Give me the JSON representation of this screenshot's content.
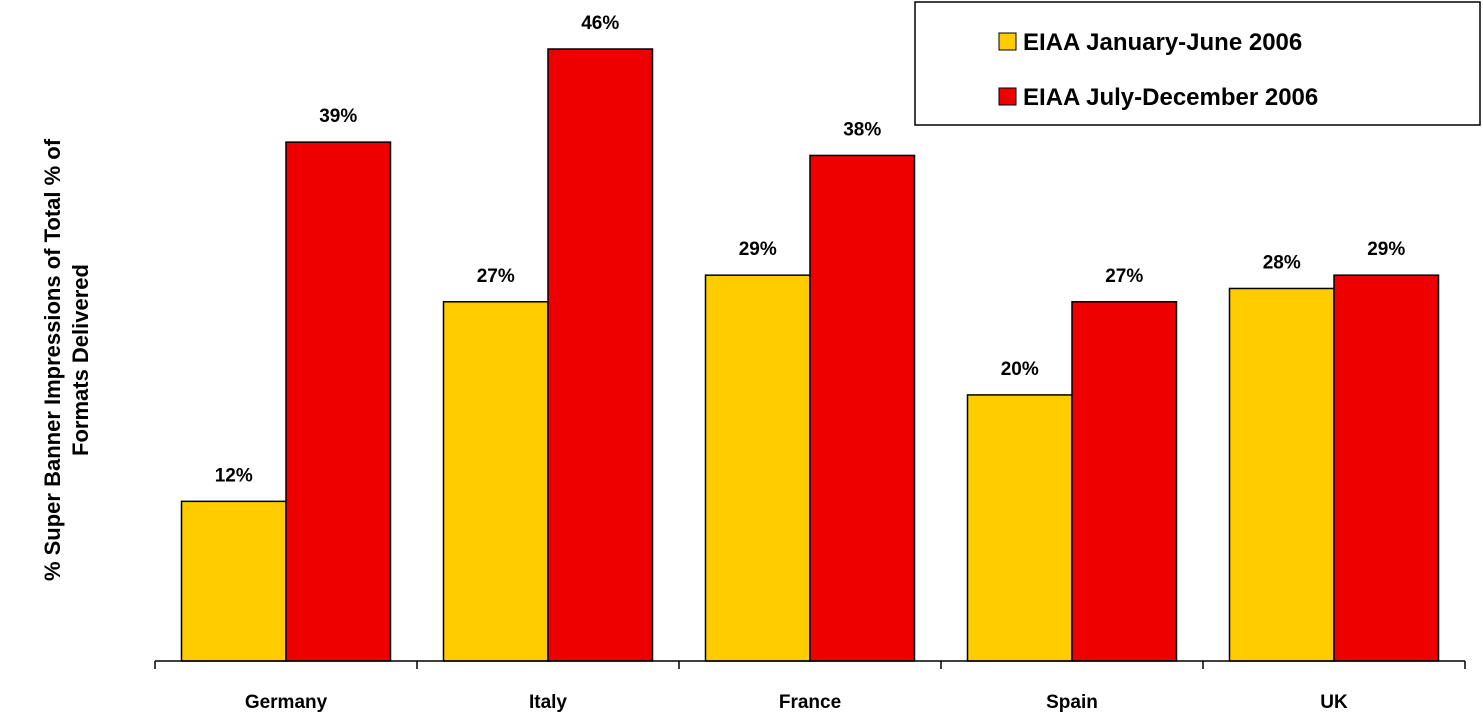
{
  "chart_data": {
    "type": "bar",
    "title": "",
    "xlabel": "",
    "ylabel_lines": [
      "% Super Banner Impressions of Total % of",
      "Formats Delivered"
    ],
    "categories": [
      "Germany",
      "Italy",
      "France",
      "Spain",
      "UK"
    ],
    "series": [
      {
        "name": "EIAA January-June 2006",
        "color": "#FFCC00",
        "values": [
          12,
          27,
          29,
          20,
          28
        ],
        "labels": [
          "12%",
          "27%",
          "29%",
          "20%",
          "28%"
        ]
      },
      {
        "name": "EIAA July-December 2006",
        "color": "#EE0000",
        "values": [
          39,
          46,
          38,
          27,
          29
        ],
        "labels": [
          "39%",
          "46%",
          "38%",
          "27%",
          "29%"
        ]
      }
    ],
    "ylim": [
      0,
      50
    ],
    "grid": false,
    "legend_position": "top-right"
  }
}
